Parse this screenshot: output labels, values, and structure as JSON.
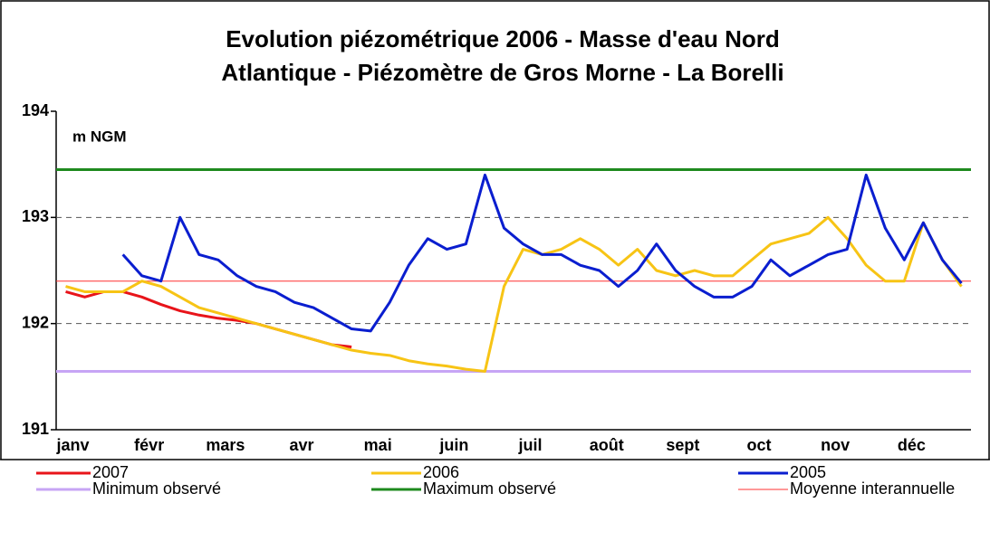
{
  "chart_data": {
    "type": "line",
    "title": [
      "Evolution piézométrique 2006 - Masse d'eau Nord",
      "Atlantique  - Piézomètre de Gros Morne - La Borelli"
    ],
    "annotation": "m NGM",
    "categories": [
      "janv",
      null,
      null,
      null,
      "févr",
      null,
      null,
      null,
      "mars",
      null,
      null,
      null,
      "avr",
      null,
      null,
      null,
      "mai",
      null,
      null,
      null,
      "juin",
      null,
      null,
      null,
      "juil",
      null,
      null,
      null,
      "août",
      null,
      null,
      null,
      "sept",
      null,
      null,
      null,
      "oct",
      null,
      null,
      null,
      "nov",
      null,
      null,
      null,
      "déc",
      null,
      null,
      null
    ],
    "ylim": [
      191,
      194
    ],
    "yticks": [
      191,
      192,
      193,
      194
    ],
    "grid": true,
    "series": [
      {
        "name": "2007",
        "color": "#e8141a",
        "values": [
          192.3,
          192.25,
          192.3,
          192.3,
          192.25,
          192.18,
          192.12,
          192.08,
          192.05,
          192.03,
          192.0,
          191.95,
          191.9,
          191.85,
          191.8,
          191.78,
          null,
          null,
          null,
          null,
          null,
          null,
          null,
          null,
          null,
          null,
          null,
          null,
          null,
          null,
          null,
          null,
          null,
          null,
          null,
          null,
          null,
          null,
          null,
          null,
          null,
          null,
          null,
          null,
          null,
          null,
          null,
          null
        ]
      },
      {
        "name": "2006",
        "color": "#f7c415",
        "values": [
          192.35,
          192.3,
          192.3,
          192.3,
          192.4,
          192.35,
          192.25,
          192.15,
          192.1,
          192.05,
          192.0,
          191.95,
          191.9,
          191.85,
          191.8,
          191.75,
          191.72,
          191.7,
          191.65,
          191.62,
          191.6,
          191.57,
          191.55,
          192.35,
          192.7,
          192.65,
          192.7,
          192.8,
          192.7,
          192.55,
          192.7,
          192.5,
          192.45,
          192.5,
          192.45,
          192.45,
          192.6,
          192.75,
          192.8,
          192.85,
          193.0,
          192.8,
          192.55,
          192.4,
          192.4,
          192.95,
          192.6,
          192.35
        ]
      },
      {
        "name": "2005",
        "color": "#0a1ecf",
        "values": [
          null,
          null,
          null,
          192.65,
          192.45,
          192.4,
          193.0,
          192.65,
          192.6,
          192.45,
          192.35,
          192.3,
          192.2,
          192.15,
          192.05,
          191.95,
          191.93,
          192.2,
          192.55,
          192.8,
          192.7,
          192.75,
          193.4,
          192.9,
          192.75,
          192.65,
          192.65,
          192.55,
          192.5,
          192.35,
          192.5,
          192.75,
          192.5,
          192.35,
          192.25,
          192.25,
          192.35,
          192.6,
          192.45,
          192.55,
          192.65,
          192.7,
          193.4,
          192.9,
          192.6,
          192.95,
          192.6,
          192.38
        ]
      }
    ],
    "reference_lines": [
      {
        "name": "Minimum observé",
        "color": "#c7a5f5",
        "value": 191.55
      },
      {
        "name": "Maximum observé",
        "color": "#1e8a1e",
        "value": 193.45
      },
      {
        "name": "Moyenne interannuelle",
        "color": "#ff3030",
        "value": 192.4
      }
    ]
  }
}
